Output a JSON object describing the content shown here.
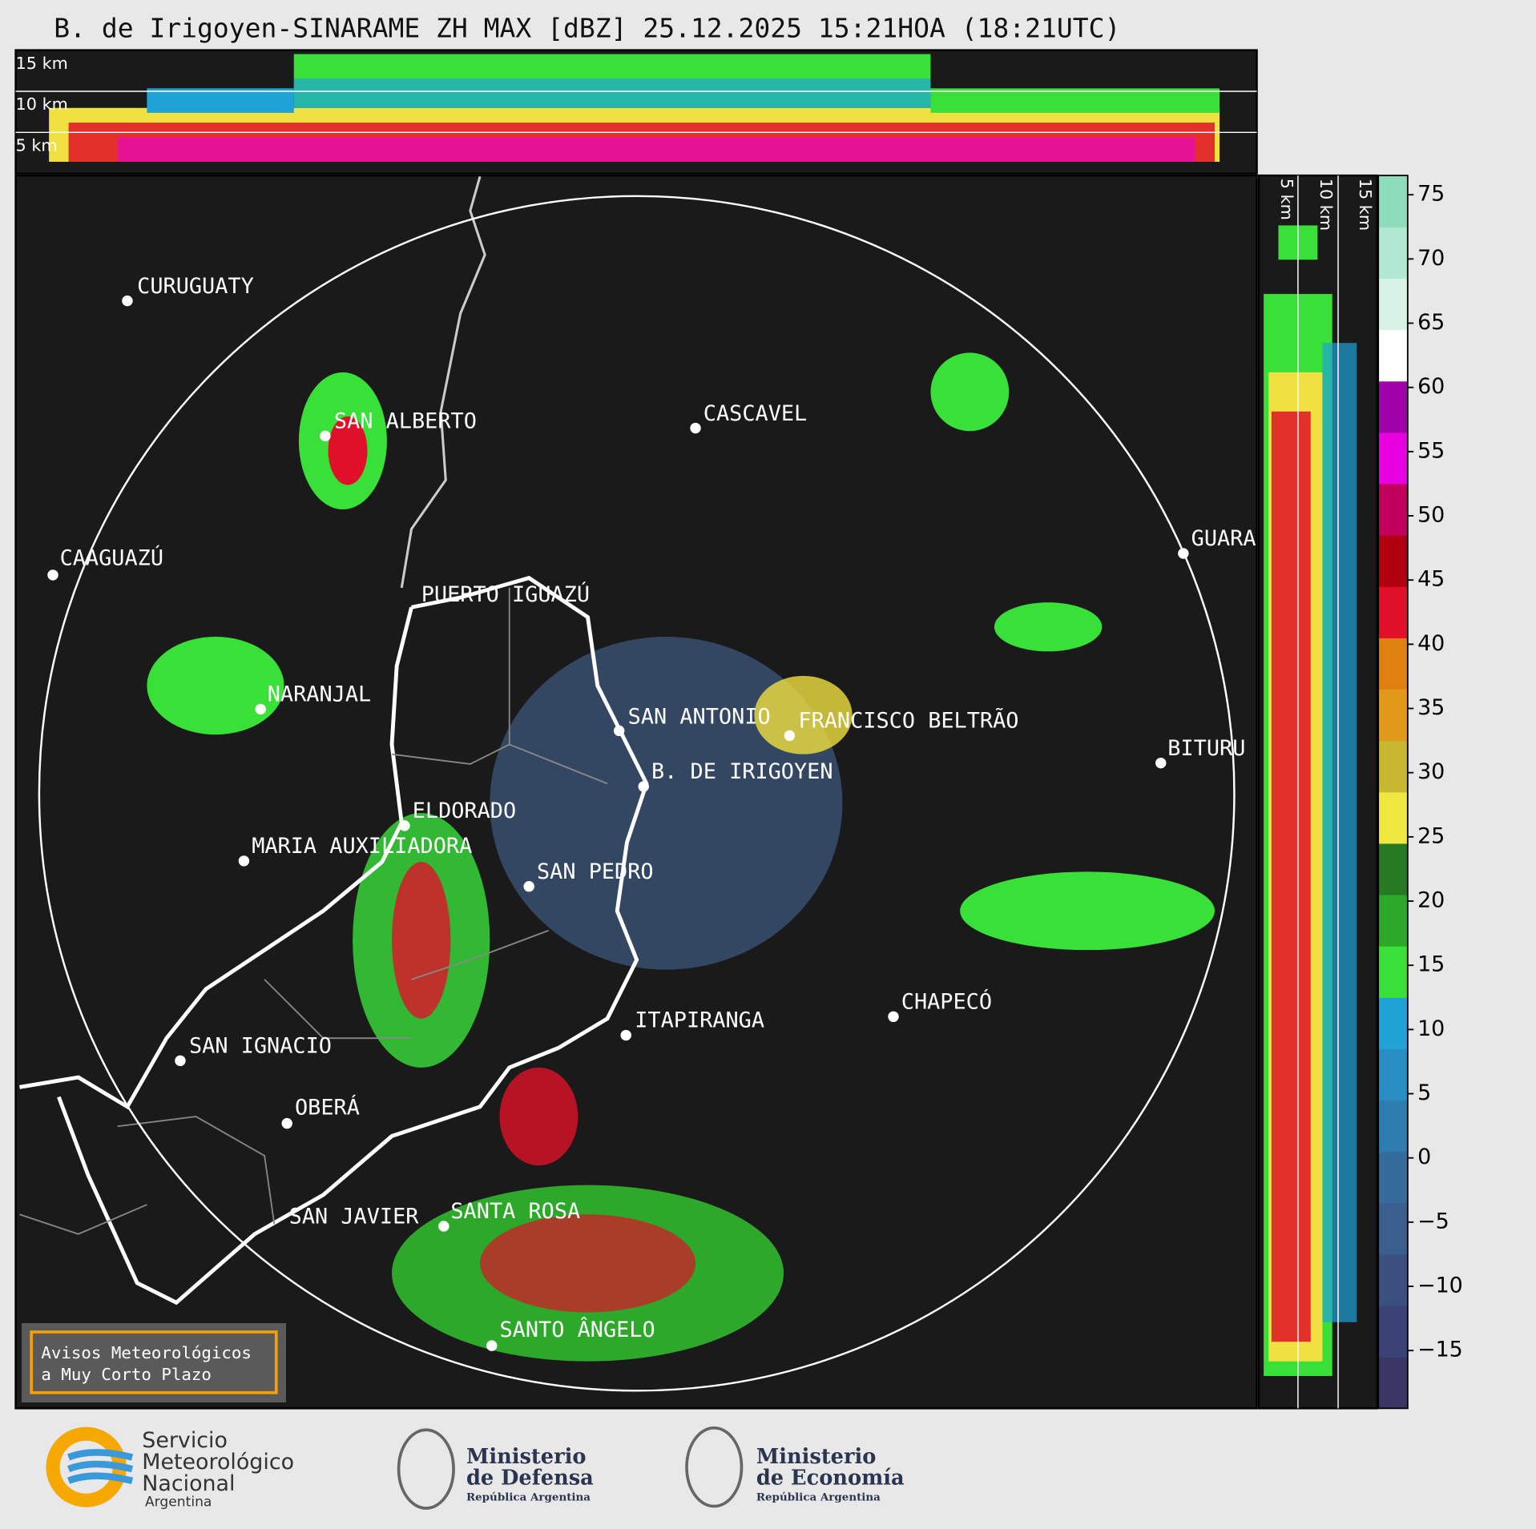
{
  "title": "B. de Irigoyen-SINARAME ZH MAX [dBZ] 25.12.2025 15:21HOA (18:21UTC)",
  "top_panel": {
    "labels": [
      "15 km",
      "10 km",
      "5 km"
    ]
  },
  "side_panel": {
    "labels": [
      "5 km",
      "10 km",
      "15 km"
    ]
  },
  "cities": [
    "CURUGUATY",
    "SAN ALBERTO",
    "CASCAVEL",
    "CAAGUAZÚ",
    "GUARA",
    "PUERTO IGUAZÚ",
    "NARANJAL",
    "SAN ANTONIO",
    "FRANCISCO BELTRÃO",
    "BITURU",
    "B. DE IRIGOYEN",
    "ELDORADO",
    "MARIA AUXILIADORA",
    "SAN PEDRO",
    "CHAPECÓ",
    "ITAPIRANGA",
    "SAN IGNACIO",
    "OBERÁ",
    "SAN JAVIER",
    "SANTA ROSA",
    "SANTO ÂNGELO"
  ],
  "warning_box": [
    "Avisos Meteorológicos",
    "a Muy Corto Plazo"
  ],
  "colorbar": {
    "ylim": [
      -19.5,
      76.5
    ],
    "yticks": [
      75,
      70,
      65,
      60,
      55,
      50,
      45,
      40,
      35,
      30,
      25,
      20,
      15,
      10,
      5,
      0,
      {
        "value": -5,
        "label": "−5"
      },
      {
        "value": -10,
        "label": "−10"
      },
      {
        "value": -15,
        "label": "−15"
      }
    ],
    "colors": [
      "#3a3565",
      "#3b4275",
      "#3c5080",
      "#3a5e8e",
      "#366c9c",
      "#2f7cae",
      "#278fc2",
      "#1fa3d6",
      "#38e038",
      "#2ea82a",
      "#257a22",
      "#f0e840",
      "#c8b830",
      "#e09a18",
      "#e08010",
      "#e01028",
      "#b00010",
      "#c0005a",
      "#e800e0",
      "#a000a8",
      "#ffffff",
      "#d8f2e6",
      "#b0e8d2",
      "#8cdcbc"
    ]
  },
  "logos": {
    "smn": [
      "Servicio",
      "Meteorológico",
      "Nacional",
      "Argentina"
    ],
    "defensa": [
      "Ministerio",
      "de Defensa",
      "República Argentina"
    ],
    "economia": [
      "Ministerio",
      "de Economía",
      "República Argentina"
    ]
  }
}
